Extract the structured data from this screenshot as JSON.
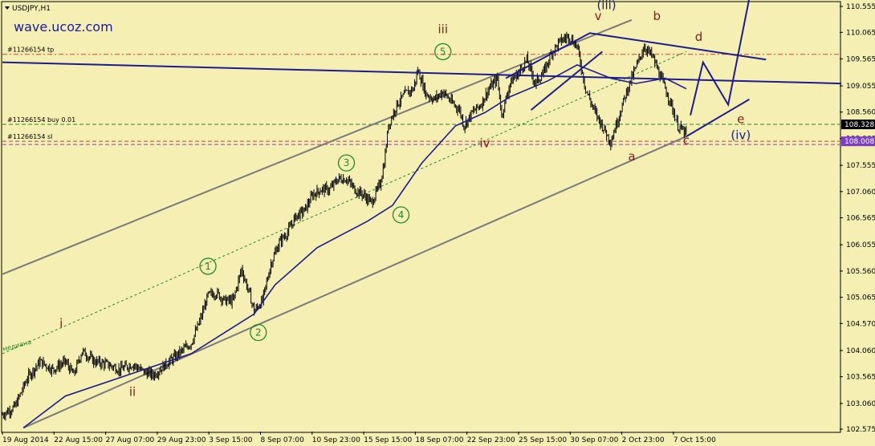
{
  "symbol": "USDJPY,H1",
  "watermark": "wave.ucoz.com",
  "colors": {
    "background": "#f5efb4",
    "candles": "#000000",
    "ma": "#1c1c8c",
    "channel": "#7a7a7a",
    "wave_red": "#8b1a1a",
    "wave_navy": "#1c1c8c",
    "wave_green": "#228b22",
    "tp_line": "#e0402a",
    "buy_line": "#228b22",
    "sl_line": "#cc3366",
    "sl_line2": "#9933cc",
    "price_tag_buy": "#000000",
    "price_tag_sl": "#7b3fc4"
  },
  "chart_data": {
    "type": "candlestick",
    "y_ticks": [
      "110.555",
      "110.065",
      "109.565",
      "109.055",
      "108.560",
      "108.060",
      "107.555",
      "107.060",
      "106.565",
      "106.055",
      "105.560",
      "105.065",
      "104.570",
      "104.060",
      "103.565",
      "103.060",
      "102.575"
    ],
    "ylim": [
      102.53,
      110.63
    ],
    "x_labels": [
      "19 Aug 2014",
      "22 Aug 15:00",
      "27 Aug 07:00",
      "29 Aug 23:00",
      "3 Sep 15:00",
      "8 Sep 07:00",
      "10 Sep 23:00",
      "15 Sep 15:00",
      "18 Sep 07:00",
      "22 Sep 23:00",
      "25 Sep 15:00",
      "30 Sep 07:00",
      "2 Oct 23:00",
      "7 Oct 15:00"
    ],
    "x_count": 200,
    "price_path": [
      [
        0,
        102.85
      ],
      [
        3,
        103.0
      ],
      [
        6,
        103.55
      ],
      [
        9,
        103.85
      ],
      [
        12,
        103.7
      ],
      [
        15,
        103.85
      ],
      [
        17,
        103.6
      ],
      [
        19,
        104.05
      ],
      [
        22,
        103.85
      ],
      [
        25,
        103.8
      ],
      [
        28,
        103.7
      ],
      [
        31,
        103.8
      ],
      [
        34,
        103.65
      ],
      [
        36,
        103.6
      ],
      [
        39,
        103.8
      ],
      [
        42,
        104.0
      ],
      [
        45,
        104.2
      ],
      [
        47,
        104.6
      ],
      [
        49,
        105.1
      ],
      [
        51,
        105.15
      ],
      [
        53,
        105.0
      ],
      [
        55,
        105.0
      ],
      [
        57,
        105.6
      ],
      [
        59,
        105.1
      ],
      [
        60,
        104.8
      ],
      [
        62,
        105.0
      ],
      [
        64,
        105.7
      ],
      [
        66,
        106.1
      ],
      [
        68,
        106.3
      ],
      [
        70,
        106.6
      ],
      [
        72,
        106.7
      ],
      [
        74,
        107.0
      ],
      [
        76,
        107.1
      ],
      [
        78,
        107.1
      ],
      [
        80,
        107.3
      ],
      [
        82,
        107.3
      ],
      [
        84,
        107.1
      ],
      [
        86,
        107.0
      ],
      [
        88,
        106.85
      ],
      [
        90,
        107.2
      ],
      [
        91,
        107.6
      ],
      [
        92,
        108.3
      ],
      [
        94,
        108.7
      ],
      [
        96,
        108.9
      ],
      [
        98,
        109.0
      ],
      [
        99,
        109.35
      ],
      [
        101,
        108.9
      ],
      [
        103,
        108.8
      ],
      [
        105,
        108.95
      ],
      [
        107,
        108.75
      ],
      [
        109,
        108.6
      ],
      [
        110,
        108.3
      ],
      [
        112,
        108.55
      ],
      [
        114,
        108.7
      ],
      [
        116,
        109.0
      ],
      [
        118,
        109.2
      ],
      [
        119,
        108.5
      ],
      [
        121,
        109.1
      ],
      [
        123,
        109.3
      ],
      [
        125,
        109.55
      ],
      [
        127,
        109.1
      ],
      [
        129,
        109.3
      ],
      [
        131,
        109.7
      ],
      [
        133,
        109.9
      ],
      [
        135,
        110.0
      ],
      [
        137,
        109.8
      ],
      [
        139,
        109.0
      ],
      [
        141,
        108.6
      ],
      [
        143,
        108.3
      ],
      [
        145,
        108.0
      ],
      [
        147,
        108.5
      ],
      [
        149,
        109.0
      ],
      [
        151,
        109.4
      ],
      [
        153,
        109.8
      ],
      [
        155,
        109.6
      ],
      [
        157,
        109.2
      ],
      [
        159,
        108.8
      ],
      [
        161,
        108.3
      ],
      [
        163,
        108.15
      ]
    ],
    "ma_path": [
      [
        5,
        102.6
      ],
      [
        15,
        103.2
      ],
      [
        30,
        103.6
      ],
      [
        45,
        104.0
      ],
      [
        55,
        104.5
      ],
      [
        60,
        104.75
      ],
      [
        65,
        105.3
      ],
      [
        75,
        106.0
      ],
      [
        87,
        106.5
      ],
      [
        93,
        106.8
      ],
      [
        100,
        107.6
      ],
      [
        108,
        108.3
      ],
      [
        115,
        108.55
      ],
      [
        121,
        108.85
      ],
      [
        130,
        109.15
      ],
      [
        137,
        109.45
      ],
      [
        145,
        109.2
      ],
      [
        151,
        109.1
      ],
      [
        158,
        109.2
      ],
      [
        163,
        109.0
      ]
    ],
    "channel_lines": [
      {
        "points": [
          [
            0,
            105.5
          ],
          [
            150,
            110.3
          ]
        ]
      },
      {
        "points": [
          [
            5,
            102.6
          ],
          [
            163,
            108.1
          ]
        ]
      },
      {
        "points": [
          [
            0,
            104.0
          ],
          [
            163,
            109.7
          ]
        ],
        "dashed": true
      }
    ],
    "navy_lines": [
      {
        "points": [
          [
            0,
            109.5
          ],
          [
            200,
            109.1
          ]
        ]
      },
      {
        "points": [
          [
            120,
            109.2
          ],
          [
            140,
            110.05
          ],
          [
            182,
            109.55
          ]
        ]
      },
      {
        "points": [
          [
            126,
            108.6
          ],
          [
            143,
            109.7
          ]
        ]
      },
      {
        "points": [
          [
            163,
            108.1
          ],
          [
            178,
            108.8
          ]
        ]
      },
      {
        "points": [
          [
            164,
            108.5
          ],
          [
            167,
            109.5
          ],
          [
            173,
            108.7
          ],
          [
            178,
            110.7
          ]
        ]
      }
    ],
    "horizontal_levels": [
      {
        "name": "tp",
        "label": "#11266154 tp",
        "value": 109.65,
        "color": "#e0402a"
      },
      {
        "name": "buy",
        "label": "#11266154 buy 0.01",
        "value": 108.328,
        "color": "#228b22"
      },
      {
        "name": "sl",
        "label": "#11266154 sl",
        "value": 108.008,
        "color": "#cc3366"
      }
    ],
    "price_tags": [
      {
        "value": 108.328,
        "label": "108.328",
        "color": "#000000"
      },
      {
        "value": 108.008,
        "label": "108.008",
        "color": "#7b3fc4"
      }
    ],
    "wave_labels": [
      {
        "text": "i",
        "x": 14,
        "y": 104.5,
        "style": "red"
      },
      {
        "text": "ii",
        "x": 31,
        "y": 103.2,
        "style": "red"
      },
      {
        "text": "iii",
        "x": 105,
        "y": 110.05,
        "style": "red"
      },
      {
        "text": "iv",
        "x": 115,
        "y": 107.9,
        "style": "red"
      },
      {
        "text": "v",
        "x": 142,
        "y": 110.3,
        "style": "red"
      },
      {
        "text": "(iii)",
        "x": 144,
        "y": 110.5,
        "style": "navy"
      },
      {
        "text": "a",
        "x": 150,
        "y": 107.65,
        "style": "red"
      },
      {
        "text": "b",
        "x": 156,
        "y": 110.3,
        "style": "red"
      },
      {
        "text": "c",
        "x": 163,
        "y": 107.95,
        "style": "red"
      },
      {
        "text": "d",
        "x": 166,
        "y": 109.9,
        "style": "red"
      },
      {
        "text": "e",
        "x": 176,
        "y": 108.35,
        "style": "red"
      },
      {
        "text": "(iv)",
        "x": 176,
        "y": 108.05,
        "style": "navy"
      }
    ],
    "circle_labels": [
      {
        "text": "1",
        "x": 49,
        "y": 105.65
      },
      {
        "text": "2",
        "x": 61,
        "y": 104.4
      },
      {
        "text": "3",
        "x": 82,
        "y": 107.6
      },
      {
        "text": "4",
        "x": 95,
        "y": 106.62
      },
      {
        "text": "5",
        "x": 105,
        "y": 109.7
      }
    ],
    "median_label": "медиана"
  }
}
